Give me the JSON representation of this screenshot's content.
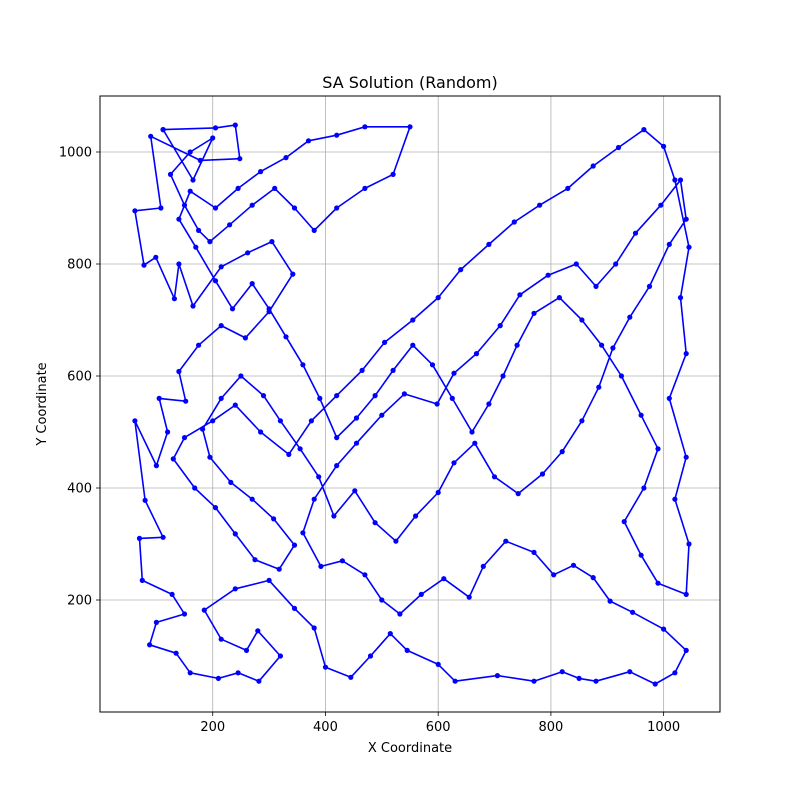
{
  "chart_data": {
    "type": "line",
    "title": "SA Solution (Random)",
    "xlabel": "X Coordinate",
    "ylabel": "Y Coordinate",
    "xlim": [
      0,
      1100
    ],
    "ylim": [
      0,
      1100
    ],
    "xticks": [
      200,
      400,
      600,
      800,
      1000
    ],
    "yticks": [
      200,
      400,
      600,
      800,
      1000
    ],
    "grid": true,
    "series_color": "#0000ff",
    "marker": "dot",
    "series": [
      {
        "closed": true,
        "points": [
          [
            112,
            1040
          ],
          [
            205,
            1043
          ],
          [
            240,
            1048
          ],
          [
            248,
            988
          ],
          [
            178,
            985
          ],
          [
            90,
            1028
          ],
          [
            108,
            900
          ],
          [
            62,
            895
          ],
          [
            78,
            798
          ],
          [
            99,
            812
          ],
          [
            132,
            738
          ],
          [
            140,
            800
          ],
          [
            165,
            725
          ],
          [
            215,
            795
          ],
          [
            262,
            820
          ],
          [
            305,
            840
          ],
          [
            342,
            782
          ],
          [
            300,
            715
          ],
          [
            258,
            668
          ],
          [
            215,
            690
          ],
          [
            175,
            655
          ],
          [
            140,
            608
          ],
          [
            152,
            555
          ],
          [
            105,
            560
          ],
          [
            120,
            500
          ],
          [
            100,
            440
          ],
          [
            62,
            520
          ],
          [
            80,
            378
          ],
          [
            112,
            312
          ],
          [
            70,
            310
          ],
          [
            75,
            235
          ],
          [
            128,
            210
          ],
          [
            150,
            175
          ],
          [
            100,
            160
          ],
          [
            88,
            120
          ],
          [
            135,
            105
          ],
          [
            160,
            70
          ],
          [
            210,
            60
          ],
          [
            245,
            70
          ],
          [
            282,
            55
          ],
          [
            320,
            100
          ],
          [
            280,
            145
          ],
          [
            260,
            110
          ],
          [
            215,
            130
          ],
          [
            185,
            182
          ],
          [
            240,
            220
          ],
          [
            300,
            235
          ],
          [
            345,
            185
          ],
          [
            380,
            150
          ],
          [
            400,
            80
          ],
          [
            445,
            62
          ],
          [
            480,
            100
          ],
          [
            515,
            140
          ],
          [
            545,
            110
          ],
          [
            600,
            85
          ],
          [
            630,
            55
          ],
          [
            705,
            65
          ],
          [
            770,
            55
          ],
          [
            820,
            72
          ],
          [
            850,
            60
          ],
          [
            880,
            55
          ],
          [
            940,
            72
          ],
          [
            985,
            50
          ],
          [
            1020,
            70
          ],
          [
            1040,
            110
          ],
          [
            1000,
            148
          ],
          [
            945,
            178
          ],
          [
            905,
            198
          ],
          [
            875,
            240
          ],
          [
            840,
            262
          ],
          [
            805,
            245
          ],
          [
            770,
            285
          ],
          [
            720,
            305
          ],
          [
            680,
            260
          ],
          [
            655,
            205
          ],
          [
            610,
            238
          ],
          [
            570,
            210
          ],
          [
            532,
            175
          ],
          [
            500,
            200
          ],
          [
            470,
            245
          ],
          [
            430,
            270
          ],
          [
            392,
            260
          ],
          [
            360,
            320
          ],
          [
            380,
            380
          ],
          [
            420,
            440
          ],
          [
            455,
            480
          ],
          [
            500,
            530
          ],
          [
            540,
            568
          ],
          [
            598,
            550
          ],
          [
            628,
            605
          ],
          [
            668,
            640
          ],
          [
            710,
            690
          ],
          [
            745,
            745
          ],
          [
            795,
            780
          ],
          [
            845,
            800
          ],
          [
            880,
            760
          ],
          [
            915,
            800
          ],
          [
            950,
            855
          ],
          [
            995,
            905
          ],
          [
            1030,
            950
          ],
          [
            1040,
            880
          ],
          [
            1010,
            835
          ],
          [
            975,
            760
          ],
          [
            940,
            705
          ],
          [
            910,
            650
          ],
          [
            885,
            580
          ],
          [
            855,
            520
          ],
          [
            820,
            465
          ],
          [
            785,
            425
          ],
          [
            742,
            390
          ],
          [
            700,
            420
          ],
          [
            665,
            480
          ],
          [
            628,
            445
          ],
          [
            600,
            392
          ],
          [
            560,
            350
          ],
          [
            525,
            305
          ],
          [
            488,
            338
          ],
          [
            452,
            395
          ],
          [
            415,
            350
          ],
          [
            388,
            420
          ],
          [
            355,
            470
          ],
          [
            320,
            520
          ],
          [
            290,
            565
          ],
          [
            250,
            600
          ],
          [
            215,
            560
          ],
          [
            182,
            505
          ],
          [
            195,
            455
          ],
          [
            232,
            410
          ],
          [
            270,
            380
          ],
          [
            308,
            345
          ],
          [
            345,
            298
          ],
          [
            318,
            255
          ],
          [
            275,
            272
          ],
          [
            240,
            318
          ],
          [
            205,
            365
          ],
          [
            168,
            400
          ],
          [
            130,
            452
          ],
          [
            150,
            490
          ],
          [
            200,
            520
          ],
          [
            240,
            548
          ],
          [
            285,
            500
          ],
          [
            335,
            460
          ],
          [
            375,
            520
          ],
          [
            420,
            565
          ],
          [
            465,
            610
          ],
          [
            505,
            660
          ],
          [
            555,
            700
          ],
          [
            600,
            740
          ],
          [
            640,
            790
          ],
          [
            690,
            835
          ],
          [
            735,
            875
          ],
          [
            780,
            905
          ],
          [
            830,
            935
          ],
          [
            875,
            975
          ],
          [
            920,
            1008
          ],
          [
            965,
            1040
          ],
          [
            1000,
            1010
          ],
          [
            1020,
            950
          ],
          [
            1045,
            830
          ],
          [
            1030,
            740
          ],
          [
            1040,
            640
          ],
          [
            1010,
            560
          ],
          [
            1040,
            455
          ],
          [
            1020,
            380
          ],
          [
            1045,
            300
          ],
          [
            1040,
            210
          ],
          [
            990,
            230
          ],
          [
            960,
            280
          ],
          [
            930,
            340
          ],
          [
            965,
            400
          ],
          [
            990,
            470
          ],
          [
            960,
            530
          ],
          [
            925,
            600
          ],
          [
            890,
            655
          ],
          [
            855,
            700
          ],
          [
            815,
            740
          ],
          [
            770,
            712
          ],
          [
            740,
            655
          ],
          [
            715,
            600
          ],
          [
            690,
            550
          ],
          [
            660,
            500
          ],
          [
            625,
            560
          ],
          [
            590,
            620
          ],
          [
            555,
            655
          ],
          [
            520,
            610
          ],
          [
            488,
            565
          ],
          [
            455,
            525
          ],
          [
            420,
            490
          ],
          [
            390,
            560
          ],
          [
            360,
            620
          ],
          [
            330,
            670
          ],
          [
            300,
            720
          ],
          [
            270,
            765
          ],
          [
            235,
            720
          ],
          [
            205,
            770
          ],
          [
            170,
            830
          ],
          [
            140,
            880
          ],
          [
            160,
            930
          ],
          [
            205,
            900
          ],
          [
            245,
            935
          ],
          [
            285,
            965
          ],
          [
            330,
            990
          ],
          [
            370,
            1020
          ],
          [
            420,
            1030
          ],
          [
            470,
            1045
          ],
          [
            550,
            1045
          ],
          [
            520,
            960
          ],
          [
            470,
            935
          ],
          [
            420,
            900
          ],
          [
            380,
            860
          ],
          [
            345,
            900
          ],
          [
            310,
            935
          ],
          [
            270,
            905
          ],
          [
            230,
            870
          ],
          [
            195,
            840
          ],
          [
            175,
            860
          ],
          [
            150,
            905
          ],
          [
            125,
            960
          ],
          [
            160,
            1000
          ],
          [
            200,
            1025
          ],
          [
            165,
            950
          ],
          [
            112,
            1040
          ]
        ]
      }
    ]
  }
}
